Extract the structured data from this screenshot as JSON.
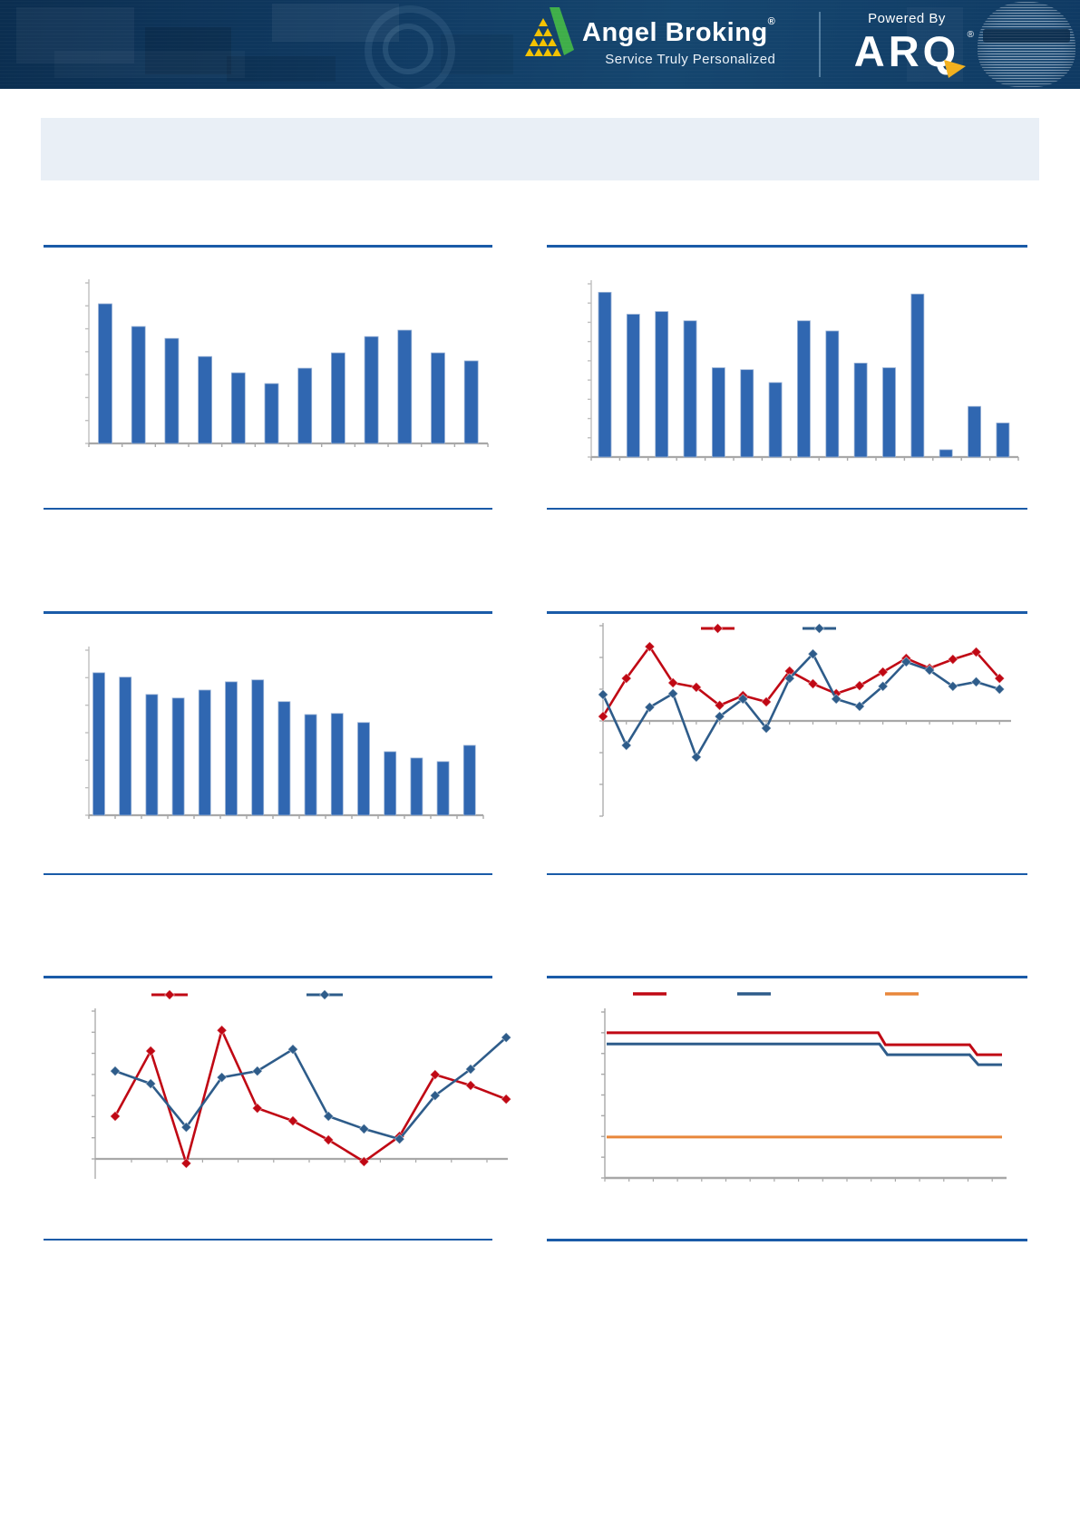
{
  "header": {
    "brand": {
      "name": "Angel Broking",
      "registered": "®",
      "tagline": "Service Truly Personalized"
    },
    "powered_by": {
      "label": "Powered By",
      "product": "ARQ",
      "registered": "®"
    },
    "colors": {
      "banner_dark": "#0B2E50",
      "banner_light": "#15466F",
      "logo_green": "#3FAE49",
      "logo_gold": "#F4C200",
      "arq_gold": "#F2B01E",
      "text": "#FFFFFF"
    }
  },
  "summary_panel": {
    "background": "#E9EFF6",
    "text": ""
  },
  "rules": {
    "color": "#1A5BA8"
  },
  "chart_colors": {
    "bar": "#3067B1",
    "bar_edge": "#9BB3D6",
    "red": "#C00814",
    "blue": "#2E5C8A",
    "orange": "#E8873B",
    "axis": "#BFBFBF",
    "zero_axis": "#A8A8A8"
  },
  "chart_data": [
    {
      "id": "top_left_bar",
      "type": "bar",
      "title": "",
      "xlabel": "",
      "ylabel": "",
      "ylim": [
        0,
        7
      ],
      "y_tick_interval": 1,
      "tick_labels_visible": false,
      "grid": false,
      "categories": [
        "",
        "",
        "",
        "",
        "",
        "",
        "",
        "",
        "",
        "",
        "",
        ""
      ],
      "values": [
        6.09,
        5.1,
        4.58,
        3.79,
        3.08,
        2.61,
        3.28,
        3.95,
        4.66,
        4.94,
        3.95,
        3.6
      ]
    },
    {
      "id": "top_right_bar",
      "type": "bar",
      "title": "",
      "xlabel": "",
      "ylabel": "",
      "ylim": [
        0,
        9
      ],
      "y_tick_interval": 1,
      "tick_labels_visible": false,
      "grid": false,
      "categories": [
        "",
        "",
        "",
        "",
        "",
        "",
        "",
        "",
        "",
        "",
        "",
        "",
        "",
        "",
        ""
      ],
      "values": [
        8.56,
        7.42,
        7.56,
        7.08,
        4.64,
        4.54,
        3.87,
        7.08,
        6.55,
        4.88,
        4.64,
        8.47,
        0.38,
        2.63,
        1.77
      ]
    },
    {
      "id": "mid_left_bar",
      "type": "bar",
      "title": "",
      "xlabel": "",
      "ylabel": "",
      "ylim": [
        0,
        6
      ],
      "y_tick_interval": 1,
      "tick_labels_visible": false,
      "grid": false,
      "categories": [
        "",
        "",
        "",
        "",
        "",
        "",
        "",
        "",
        "",
        "",
        "",
        "",
        "",
        "",
        ""
      ],
      "values": [
        5.18,
        5.02,
        4.39,
        4.26,
        4.55,
        4.85,
        4.92,
        4.13,
        3.66,
        3.7,
        3.37,
        2.31,
        2.08,
        1.95,
        2.54
      ]
    },
    {
      "id": "mid_right_line",
      "type": "line",
      "title": "",
      "xlabel": "",
      "ylabel": "",
      "ylim": [
        -3,
        3
      ],
      "y_tick_interval": 1,
      "tick_labels_visible": false,
      "grid": false,
      "legend_visible": true,
      "legend_position": "top",
      "series": [
        {
          "name": "series-red",
          "label": "",
          "color_key": "red",
          "values": [
            0.14,
            1.34,
            2.34,
            1.2,
            1.06,
            0.49,
            0.8,
            0.6,
            1.57,
            1.17,
            0.86,
            1.11,
            1.54,
            1.97,
            1.66,
            1.94,
            2.17,
            1.34
          ]
        },
        {
          "name": "series-blue",
          "label": "",
          "color_key": "blue",
          "values": [
            0.83,
            -0.77,
            0.43,
            0.86,
            -1.14,
            0.14,
            0.69,
            -0.23,
            1.34,
            2.11,
            0.69,
            0.46,
            1.09,
            1.86,
            1.6,
            1.09,
            1.23,
            1.0
          ]
        }
      ]
    },
    {
      "id": "bottom_left_line",
      "type": "line",
      "title": "",
      "xlabel": "",
      "ylabel": "",
      "ylim": [
        -0.94,
        7
      ],
      "y_tick_interval": 1,
      "tick_labels_visible": false,
      "grid": false,
      "legend_visible": true,
      "legend_position": "top",
      "series": [
        {
          "name": "series-red",
          "label": "",
          "color_key": "red",
          "values": [
            2.02,
            5.11,
            -0.21,
            6.09,
            2.4,
            1.8,
            0.9,
            -0.13,
            1.07,
            3.99,
            3.48,
            2.83
          ]
        },
        {
          "name": "series-blue",
          "label": "",
          "color_key": "blue",
          "values": [
            4.16,
            3.56,
            1.5,
            3.86,
            4.16,
            5.19,
            2.02,
            1.42,
            0.94,
            3.0,
            4.25,
            5.75
          ]
        }
      ]
    },
    {
      "id": "bottom_right_rates",
      "type": "step_line",
      "title": "",
      "xlabel": "",
      "ylabel": "",
      "ylim": [
        0,
        8
      ],
      "y_tick_interval": 1,
      "tick_labels_visible": false,
      "grid": false,
      "legend_visible": true,
      "legend_position": "top",
      "series": [
        {
          "name": "series-red",
          "label": "",
          "color_key": "red",
          "points": [
            [
              0,
              7.0
            ],
            [
              0.687,
              7.0
            ],
            [
              0.705,
              6.42
            ],
            [
              0.918,
              6.42
            ],
            [
              0.937,
              5.94
            ],
            [
              1,
              5.94
            ]
          ]
        },
        {
          "name": "series-blue",
          "label": "",
          "color_key": "blue",
          "points": [
            [
              0,
              6.46
            ],
            [
              0.69,
              6.46
            ],
            [
              0.71,
              5.94
            ],
            [
              0.918,
              5.94
            ],
            [
              0.94,
              5.46
            ],
            [
              1,
              5.46
            ]
          ]
        },
        {
          "name": "series-orange",
          "label": "",
          "color_key": "orange",
          "points": [
            [
              0,
              1.97
            ],
            [
              1,
              1.97
            ]
          ]
        }
      ]
    }
  ]
}
